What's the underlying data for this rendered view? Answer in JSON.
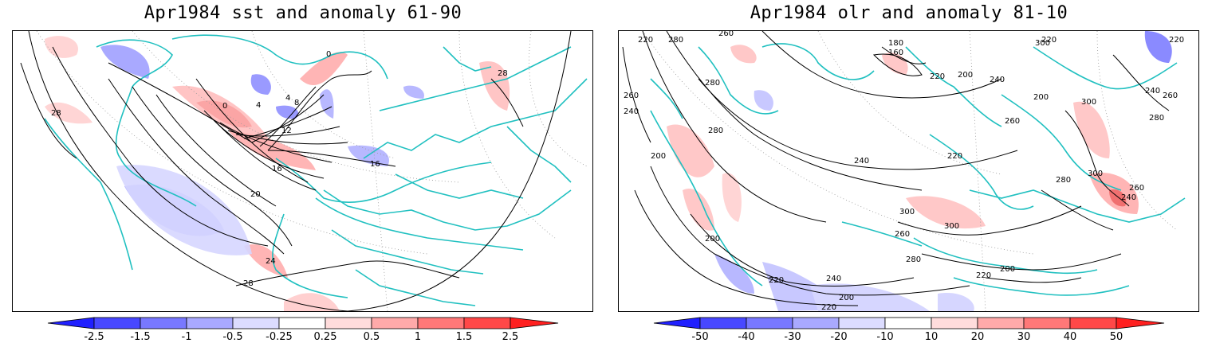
{
  "panels": [
    {
      "title": "Apr1984 sst and anomaly 61-90",
      "colorbar_ticks": [
        "-2.5",
        "-1.5",
        "-1",
        "-0.5",
        "-0.25",
        "0.25",
        "0.5",
        "1",
        "1.5",
        "2.5"
      ],
      "contour_labels": [
        "0",
        "0",
        "4",
        "4",
        "8",
        "12",
        "16",
        "16",
        "20",
        "24",
        "28",
        "28",
        "28"
      ]
    },
    {
      "title": "Apr1984 olr and anomaly 81-10",
      "colorbar_ticks": [
        "-50",
        "-40",
        "-30",
        "-20",
        "-10",
        "10",
        "20",
        "30",
        "40",
        "50"
      ],
      "contour_labels": [
        "220",
        "280",
        "260",
        "180",
        "160",
        "220",
        "300",
        "220",
        "240",
        "280",
        "200",
        "200",
        "220",
        "260",
        "240",
        "300",
        "240",
        "260",
        "280",
        "280",
        "200",
        "220",
        "240",
        "260",
        "200",
        "220",
        "300",
        "300",
        "260",
        "280",
        "240",
        "200",
        "220",
        "200",
        "220",
        "280",
        "300",
        "240",
        "260"
      ]
    }
  ],
  "colors": {
    "coast": "#20c0c0",
    "neg_strong": "#2020ff",
    "pos_strong": "#ff2020",
    "neg_weak": "#dcdcff",
    "pos_weak": "#ffdcdc"
  }
}
